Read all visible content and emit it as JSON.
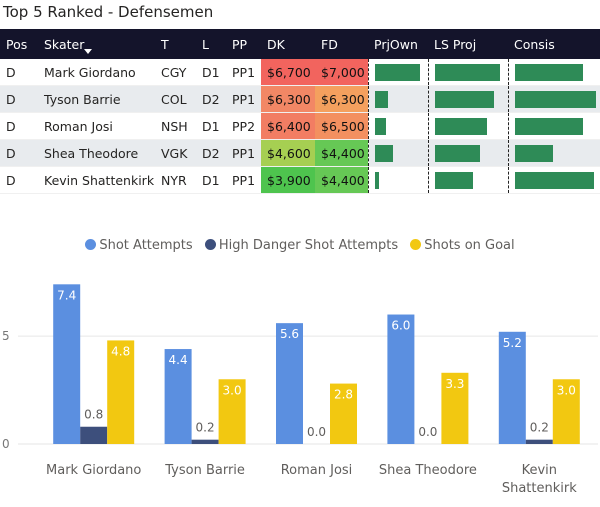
{
  "title": "Top 5 Ranked - Defensemen",
  "table": {
    "headers": [
      "Pos",
      "Skater",
      "T",
      "L",
      "PP",
      "DK",
      "FD",
      "PrjOwn",
      "LS Proj",
      "Consis"
    ],
    "rows": [
      {
        "pos": "D",
        "skater": "Mark Giordano",
        "team": "CGY",
        "line": "D1",
        "pp": "PP1",
        "dk": "$6,700",
        "fd": "$7,000",
        "dk_color": "#f2645e",
        "fd_color": "#f2645e",
        "prjown": 0.85,
        "lsproj": 0.9,
        "consis": 0.8
      },
      {
        "pos": "D",
        "skater": "Tyson Barrie",
        "team": "COL",
        "line": "D2",
        "pp": "PP1",
        "dk": "$6,300",
        "fd": "$6,300",
        "dk_color": "#f28765",
        "fd_color": "#f4a05e",
        "prjown": 0.25,
        "lsproj": 0.82,
        "consis": 0.95
      },
      {
        "pos": "D",
        "skater": "Roman Josi",
        "team": "NSH",
        "line": "D1",
        "pp": "PP2",
        "dk": "$6,400",
        "fd": "$6,500",
        "dk_color": "#f27d63",
        "fd_color": "#f39060",
        "prjown": 0.22,
        "lsproj": 0.72,
        "consis": 0.8
      },
      {
        "pos": "D",
        "skater": "Shea Theodore",
        "team": "VGK",
        "line": "D2",
        "pp": "PP1",
        "dk": "$4,600",
        "fd": "$4,400",
        "dk_color": "#a6cf52",
        "fd_color": "#66c855",
        "prjown": 0.35,
        "lsproj": 0.63,
        "consis": 0.45
      },
      {
        "pos": "D",
        "skater": "Kevin Shattenkirk",
        "team": "NYR",
        "line": "D1",
        "pp": "PP1",
        "dk": "$3,900",
        "fd": "$4,400",
        "dk_color": "#4ec44e",
        "fd_color": "#66c855",
        "prjown": 0.08,
        "lsproj": 0.53,
        "consis": 0.93
      }
    ]
  },
  "colors": {
    "shot_attempts": "#5b8fe0",
    "high_danger": "#3d4f7c",
    "shots_on_goal": "#f2c811",
    "bar_green": "#2e8b57"
  },
  "chart_data": {
    "type": "bar",
    "categories": [
      "Mark Giordano",
      "Tyson Barrie",
      "Roman Josi",
      "Shea Theodore",
      "Kevin Shattenkirk"
    ],
    "series": [
      {
        "name": "Shot Attempts",
        "values": [
          7.4,
          4.4,
          5.6,
          6.0,
          5.2
        ]
      },
      {
        "name": "High Danger Shot Attempts",
        "values": [
          0.8,
          0.2,
          0.0,
          0.0,
          0.2
        ]
      },
      {
        "name": "Shots on Goal",
        "values": [
          4.8,
          3.0,
          2.8,
          3.3,
          3.0
        ]
      }
    ],
    "y_ticks": [
      "0",
      "5"
    ],
    "ylim": [
      0,
      7.6
    ],
    "legend_position": "top-center",
    "grid": true
  }
}
